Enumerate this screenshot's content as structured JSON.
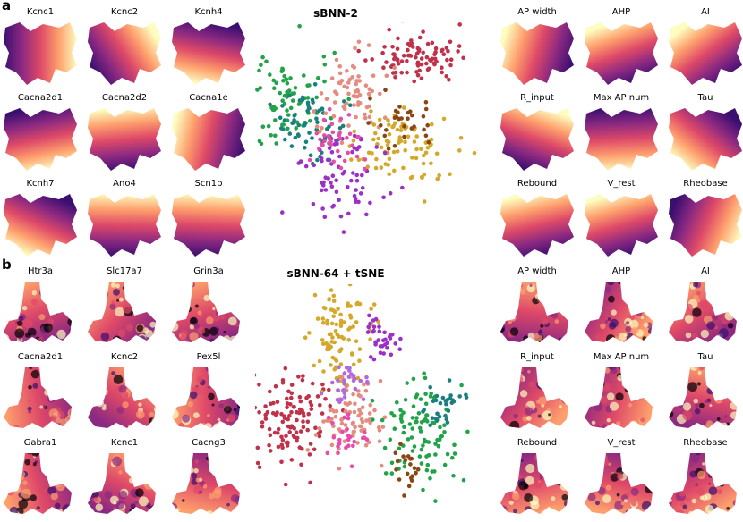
{
  "panels": {
    "a": {
      "letter": "a",
      "title": "sBNN-2",
      "genes": [
        "Kcnc1",
        "Kcnc2",
        "Kcnh4",
        "Cacna2d1",
        "Cacna2d2",
        "Cacna1e",
        "Kcnh7",
        "Ano4",
        "Scn1b"
      ],
      "features": [
        "AP width",
        "AHP",
        "AI",
        "R_input",
        "Max AP num",
        "Tau",
        "Rebound",
        "V_rest",
        "Rheobase"
      ]
    },
    "b": {
      "letter": "b",
      "title": "sBNN-64 + tSNE",
      "genes": [
        "Htr3a",
        "Slc17a7",
        "Grin3a",
        "Cacna2d1",
        "Kcnc2",
        "Pex5l",
        "Gabra1",
        "Kcnc1",
        "Cacng3"
      ],
      "features": [
        "AP width",
        "AHP",
        "AI",
        "R_input",
        "Max AP num",
        "Tau",
        "Rebound",
        "V_rest",
        "Rheobase"
      ]
    }
  },
  "colormap": [
    "#000004",
    "#3b0f70",
    "#8c2981",
    "#de4968",
    "#fe9f6d",
    "#fcfdbf"
  ],
  "cluster_colors": [
    "#c0314a",
    "#d4a82a",
    "#e58b7f",
    "#22a34a",
    "#1a7f7f",
    "#9b30c8",
    "#b06ae0",
    "#e74cab",
    "#8b4513"
  ]
}
